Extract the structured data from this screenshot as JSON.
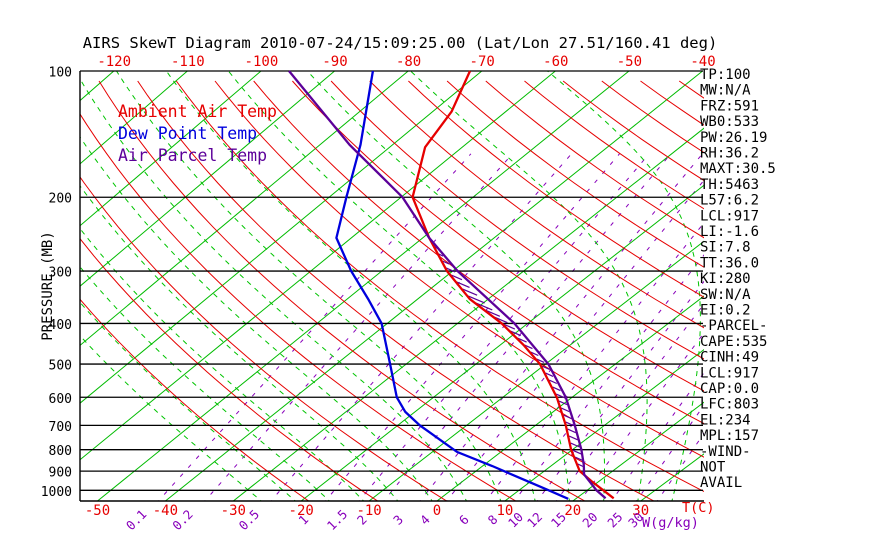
{
  "title": "AIRS SkewT Diagram 2010-07-24/15:09:25.00 (Lat/Lon 27.51/160.41 deg)",
  "axes": {
    "pressure_label": "PRESSURE (MB)",
    "pressure_ticks": [
      100,
      200,
      300,
      400,
      500,
      600,
      700,
      800,
      900,
      1000
    ],
    "top_temp_ticks": [
      -120,
      -110,
      -100,
      -90,
      -80,
      -70,
      -60,
      -50,
      -40
    ],
    "bottom_temp_ticks": [
      -50,
      -40,
      -30,
      -20,
      -10,
      0,
      10,
      20,
      30
    ],
    "temp_unit_label": "T(C)",
    "mixing_unit_label": "W(g/kg)",
    "mixing_ratio_ticks": [
      0.1,
      0.2,
      0.5,
      1,
      1.5,
      2,
      3,
      4,
      6,
      8,
      10,
      12,
      15,
      20,
      25,
      30
    ]
  },
  "legend": {
    "items": [
      {
        "label": "Ambient Air Temp",
        "color": "#e60000"
      },
      {
        "label": "Dew Point Temp",
        "color": "#0000dd"
      },
      {
        "label": "Air Parcel Temp",
        "color": "#5c0099"
      }
    ]
  },
  "stats_panel": [
    "TP:100",
    "MW:N/A",
    "FRZ:591",
    "WB0:533",
    "PW:26.19",
    "RH:36.2",
    "MAXT:30.5",
    "TH:5463",
    "L57:6.2",
    "LCL:917",
    "LI:-1.6",
    "SI:7.8",
    "TT:36.0",
    "KI:280",
    "SW:N/A",
    "EI:0.2",
    "-PARCEL-",
    "CAPE:535",
    "CINH:49",
    "LCL:917",
    "CAP:0.0",
    "LFC:803",
    "EL:234",
    "MPL:157",
    "-WIND-",
    "NOT",
    "AVAIL"
  ],
  "colors": {
    "isotherm_green": "#00bb00",
    "moist_green": "#00c400",
    "dry_adiabat_red": "#e60000",
    "mixing_purple": "#8800bb",
    "temp_red": "#e60000",
    "dewpoint_blue": "#0000dd",
    "parcel_purple": "#5c0099",
    "axis_black": "#000000",
    "label_red": "#e60000"
  },
  "chart_data": {
    "type": "line",
    "subtype": "skewt-log-p",
    "pressure_axis": {
      "scale": "log",
      "range_mb": [
        100,
        1075
      ],
      "ticks": [
        100,
        200,
        300,
        400,
        500,
        600,
        700,
        800,
        900,
        1000
      ]
    },
    "temp_axis": {
      "unit": "C",
      "top_ticks": [
        -120,
        -110,
        -100,
        -90,
        -80,
        -70,
        -60,
        -50,
        -40
      ],
      "bottom_ticks": [
        -50,
        -40,
        -30,
        -20,
        -10,
        0,
        10,
        20,
        30
      ]
    },
    "background": {
      "isotherms_c": {
        "min": -160,
        "max": 40,
        "step": 10
      },
      "dry_adiabats_theta_k": {
        "min": 250,
        "max": 450,
        "step": 10
      },
      "moist_adiabats_surface_c": {
        "min": -25,
        "max": 45,
        "step": 5
      },
      "mixing_ratio_g_kg": [
        0.1,
        0.2,
        0.5,
        1,
        1.5,
        2,
        3,
        4,
        6,
        8,
        10,
        12,
        15,
        20,
        25,
        30
      ]
    },
    "series": [
      {
        "name": "Ambient Air Temp",
        "color": "#e60000",
        "points_p_t": [
          [
            100,
            -71.6
          ],
          [
            125,
            -67.4
          ],
          [
            152,
            -65.1
          ],
          [
            200,
            -58.4
          ],
          [
            250,
            -49.1
          ],
          [
            300,
            -40.8
          ],
          [
            350,
            -32.6
          ],
          [
            400,
            -23.7
          ],
          [
            450,
            -16.7
          ],
          [
            500,
            -10.8
          ],
          [
            600,
            -2.2
          ],
          [
            700,
            4.4
          ],
          [
            800,
            9.8
          ],
          [
            900,
            15.2
          ],
          [
            950,
            18.8
          ],
          [
            1045,
            25.5
          ]
        ]
      },
      {
        "name": "Dew Point Temp",
        "color": "#0000dd",
        "points_p_t": [
          [
            100,
            -84.8
          ],
          [
            150,
            -74.4
          ],
          [
            200,
            -67.6
          ],
          [
            250,
            -62.1
          ],
          [
            300,
            -54.3
          ],
          [
            350,
            -47.0
          ],
          [
            400,
            -40.8
          ],
          [
            500,
            -32.3
          ],
          [
            600,
            -25.3
          ],
          [
            650,
            -21.4
          ],
          [
            700,
            -16.8
          ],
          [
            810,
            -6.4
          ],
          [
            875,
            1.4
          ],
          [
            935,
            7.8
          ],
          [
            995,
            13.9
          ],
          [
            1048,
            18.9
          ]
        ]
      },
      {
        "name": "Air Parcel Temp",
        "color": "#5c0099",
        "points_p_t": [
          [
            100,
            -96.2
          ],
          [
            150,
            -75.9
          ],
          [
            200,
            -59.8
          ],
          [
            250,
            -49.1
          ],
          [
            300,
            -39.3
          ],
          [
            400,
            -21.9
          ],
          [
            500,
            -9.6
          ],
          [
            600,
            -0.9
          ],
          [
            700,
            5.7
          ],
          [
            800,
            11.3
          ],
          [
            870,
            14.6
          ],
          [
            917,
            16.5
          ],
          [
            1000,
            21.4
          ],
          [
            1045,
            24.3
          ]
        ]
      }
    ],
    "cape_hatch": {
      "between": [
        "Air Parcel Temp",
        "Ambient Air Temp"
      ],
      "pressure_range_mb": [
        253,
        876
      ]
    }
  }
}
